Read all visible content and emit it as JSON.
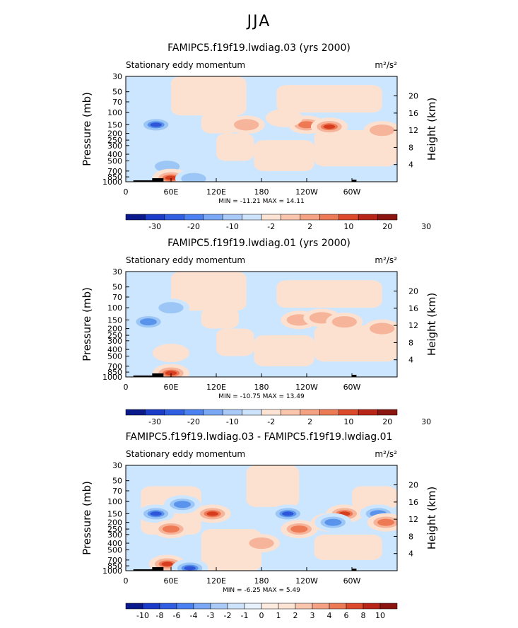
{
  "page_title": "JJA",
  "colors": {
    "bg_band": "#cce6ff",
    "positive_light": "#fde1d0",
    "positive_mid": "#f6b49a",
    "positive_strong": "#ee7a55",
    "positive_max": "#d63c1e",
    "negative_light": "#cce6ff",
    "negative_mid": "#9cc6f5",
    "negative_strong": "#5a93ec",
    "negative_max": "#2f55d8",
    "topography": "#000000"
  },
  "chart_data": [
    {
      "type": "heatmap",
      "title": "FAMIPC5.f19f19.lwdiag.03 (yrs 2000)",
      "subtitle_left": "Stationary eddy momentum",
      "units": "m²/s²",
      "ylabel": "Pressure (mb)",
      "ylabel_right": "Height (km)",
      "y_ticks": [
        "30",
        "50",
        "70",
        "100",
        "150",
        "200",
        "250",
        "300",
        "400",
        "500",
        "700",
        "850",
        "1000"
      ],
      "y_ticks_right": [
        "20",
        "16",
        "12",
        "8",
        "4"
      ],
      "x_ticks": [
        "0",
        "60E",
        "120E",
        "180",
        "120W",
        "60W"
      ],
      "min_max": "MIN = -11.21   MAX =  14.11",
      "colorbar": {
        "labels": [
          "-30",
          "-20",
          "-10",
          "-2",
          "2",
          "10",
          "20",
          "30"
        ],
        "colors": [
          "#0a1a8a",
          "#1a3cc8",
          "#2f5ee0",
          "#4a80f0",
          "#7aa8f5",
          "#a9c9f7",
          "#cde2fb",
          "#fde3d3",
          "#f9c5ad",
          "#f4a283",
          "#ec7a55",
          "#dd4a2b",
          "#b82617",
          "#8a1410"
        ]
      },
      "blobs": [
        {
          "lon": 40,
          "p": 150,
          "v": -12
        },
        {
          "lon": 55,
          "p": 600,
          "v": -4
        },
        {
          "lon": 60,
          "p": 880,
          "v": 14
        },
        {
          "lon": 160,
          "p": 150,
          "v": 4
        },
        {
          "lon": 240,
          "p": 150,
          "v": 8
        },
        {
          "lon": 270,
          "p": 160,
          "v": 10
        },
        {
          "lon": 340,
          "p": 180,
          "v": 6
        },
        {
          "lon": 90,
          "p": 900,
          "v": -5
        },
        {
          "lon": 210,
          "p": 120,
          "v": 3
        }
      ]
    },
    {
      "type": "heatmap",
      "title": "FAMIPC5.f19f19.lwdiag.01 (yrs 2000)",
      "subtitle_left": "Stationary eddy momentum",
      "units": "m²/s²",
      "ylabel": "Pressure (mb)",
      "ylabel_right": "Height (km)",
      "y_ticks": [
        "30",
        "50",
        "70",
        "100",
        "150",
        "200",
        "250",
        "300",
        "400",
        "500",
        "700",
        "850",
        "1000"
      ],
      "y_ticks_right": [
        "20",
        "16",
        "12",
        "8",
        "4"
      ],
      "x_ticks": [
        "0",
        "60E",
        "120E",
        "180",
        "120W",
        "60W"
      ],
      "min_max": "MIN = -10.75   MAX =  13.49",
      "colorbar": {
        "labels": [
          "-30",
          "-20",
          "-10",
          "-2",
          "2",
          "10",
          "20",
          "30"
        ],
        "colors": [
          "#0a1a8a",
          "#1a3cc8",
          "#2f5ee0",
          "#4a80f0",
          "#7aa8f5",
          "#a9c9f7",
          "#cde2fb",
          "#fde3d3",
          "#f9c5ad",
          "#f4a283",
          "#ec7a55",
          "#dd4a2b",
          "#b82617",
          "#8a1410"
        ]
      },
      "blobs": [
        {
          "lon": 30,
          "p": 160,
          "v": -8
        },
        {
          "lon": 60,
          "p": 100,
          "v": -5
        },
        {
          "lon": 60,
          "p": 880,
          "v": 12
        },
        {
          "lon": 230,
          "p": 150,
          "v": 6
        },
        {
          "lon": 260,
          "p": 140,
          "v": 7
        },
        {
          "lon": 290,
          "p": 160,
          "v": 5
        },
        {
          "lon": 340,
          "p": 200,
          "v": 5
        },
        {
          "lon": 60,
          "p": 450,
          "v": 3
        }
      ]
    },
    {
      "type": "heatmap",
      "title": "FAMIPC5.f19f19.lwdiag.03 - FAMIPC5.f19f19.lwdiag.01",
      "subtitle_left": "Stationary eddy momentum",
      "units": "m²/s²",
      "ylabel": "Pressure (mb)",
      "ylabel_right": "Height (km)",
      "y_ticks": [
        "30",
        "50",
        "70",
        "100",
        "150",
        "200",
        "250",
        "300",
        "400",
        "500",
        "700",
        "850",
        "1000"
      ],
      "y_ticks_right": [
        "20",
        "16",
        "12",
        "8",
        "4"
      ],
      "x_ticks": [
        "0",
        "60E",
        "120E",
        "180",
        "120W",
        "60W"
      ],
      "min_max": "MIN =  -6.25   MAX =   5.49",
      "colorbar": {
        "labels": [
          "-10",
          "-8",
          "-6",
          "-4",
          "-3",
          "-2",
          "-1",
          "0",
          "1",
          "2",
          "3",
          "4",
          "6",
          "8",
          "10"
        ],
        "colors": [
          "#0a1a8a",
          "#1a3cc8",
          "#2f5ee0",
          "#4a80f0",
          "#7aa8f5",
          "#a9c9f7",
          "#cde2fb",
          "#e6f1fd",
          "#fdeadf",
          "#fde3d3",
          "#f9c5ad",
          "#f4a283",
          "#ec7a55",
          "#dd4a2b",
          "#b82617",
          "#8a1410"
        ]
      },
      "blobs": [
        {
          "lon": 40,
          "p": 150,
          "v": -6
        },
        {
          "lon": 75,
          "p": 110,
          "v": -3
        },
        {
          "lon": 115,
          "p": 150,
          "v": 5
        },
        {
          "lon": 60,
          "p": 250,
          "v": 3
        },
        {
          "lon": 55,
          "p": 800,
          "v": 4
        },
        {
          "lon": 85,
          "p": 920,
          "v": -5
        },
        {
          "lon": 215,
          "p": 150,
          "v": -4
        },
        {
          "lon": 230,
          "p": 250,
          "v": 3
        },
        {
          "lon": 270,
          "p": 200,
          "v": 3
        },
        {
          "lon": 290,
          "p": 150,
          "v": 5
        },
        {
          "lon": 275,
          "p": 200,
          "v": -3
        },
        {
          "lon": 335,
          "p": 150,
          "v": -3
        },
        {
          "lon": 345,
          "p": 200,
          "v": 3
        },
        {
          "lon": 180,
          "p": 400,
          "v": 2
        }
      ]
    }
  ]
}
